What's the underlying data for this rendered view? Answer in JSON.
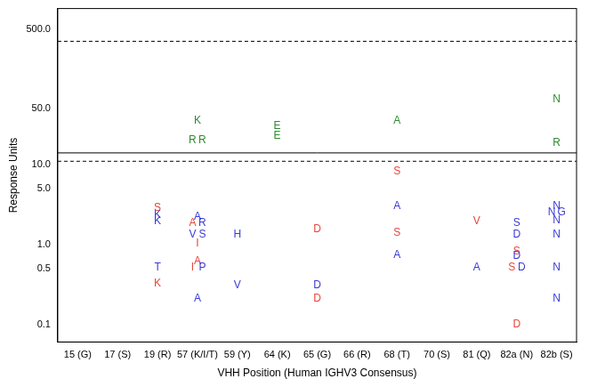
{
  "chart_data": {
    "type": "scatter",
    "x_label": "VHH Position (Human IGHV3 Consensus)",
    "y_label": "Response Units",
    "categories": [
      "15 (G)",
      "17 (S)",
      "19 (R)",
      "57 (K/I/T)",
      "59 (Y)",
      "64 (K)",
      "65 (G)",
      "66 (R)",
      "68 (T)",
      "70 (S)",
      "81 (Q)",
      "82a (N)",
      "82b (S)"
    ],
    "log": "y",
    "grid": false,
    "ylim": [
      0.06,
      900
    ],
    "yticks": [
      {
        "value": 0.1,
        "label": "0.1"
      },
      {
        "value": 0.5,
        "label": "0.5"
      },
      {
        "value": 1,
        "label": "1.0"
      },
      {
        "value": 5,
        "label": "5.0"
      },
      {
        "value": 10,
        "label": "10.0"
      },
      {
        "value": 50,
        "label": "50.0"
      },
      {
        "value": 500,
        "label": "500.0"
      }
    ],
    "reference_lines": [
      {
        "value": 350,
        "line_style": "dashed"
      },
      {
        "value": 14,
        "line_style": "solid"
      },
      {
        "value": 11,
        "line_style": "dashed"
      }
    ],
    "series": [
      {
        "color": "#2e8b2e",
        "points": [
          {
            "x": "57 (K/I/T)",
            "y": 35,
            "label": "K"
          },
          {
            "x": "57 (K/I/T)",
            "y": 20,
            "label": "R"
          },
          {
            "x": "57 (K/I/T)",
            "y": 20,
            "label": "R"
          },
          {
            "x": "64 (K)",
            "y": 30,
            "label": "E"
          },
          {
            "x": "64 (K)",
            "y": 23,
            "label": "E"
          },
          {
            "x": "68 (T)",
            "y": 35,
            "label": "A"
          },
          {
            "x": "82b (S)",
            "y": 66,
            "label": "N"
          },
          {
            "x": "82b (S)",
            "y": 18.5,
            "label": "R"
          }
        ]
      },
      {
        "color": "#e8453c",
        "points": [
          {
            "x": "19 (R)",
            "y": 2.9,
            "label": "S"
          },
          {
            "x": "19 (R)",
            "y": 0.32,
            "label": "K"
          },
          {
            "x": "57 (K/I/T)",
            "y": 1.85,
            "label": "A"
          },
          {
            "x": "57 (K/I/T)",
            "y": 1.02,
            "label": "I"
          },
          {
            "x": "57 (K/I/T)",
            "y": 0.61,
            "label": "A"
          },
          {
            "x": "57 (K/I/T)",
            "y": 0.52,
            "label": "I"
          },
          {
            "x": "65 (G)",
            "y": 1.55,
            "label": "D"
          },
          {
            "x": "65 (G)",
            "y": 0.21,
            "label": "D"
          },
          {
            "x": "68 (T)",
            "y": 8.2,
            "label": "S"
          },
          {
            "x": "68 (T)",
            "y": 1.41,
            "label": "S"
          },
          {
            "x": "81 (Q)",
            "y": 1.94,
            "label": "V"
          },
          {
            "x": "82a (N)",
            "y": 0.82,
            "label": "S"
          },
          {
            "x": "82a (N)",
            "y": 0.52,
            "label": "S"
          },
          {
            "x": "82a (N)",
            "y": 0.1,
            "label": "D"
          }
        ]
      },
      {
        "color": "#3a3ad6",
        "points": [
          {
            "x": "19 (R)",
            "y": 2.36,
            "label": "K"
          },
          {
            "x": "19 (R)",
            "y": 1.94,
            "label": "K"
          },
          {
            "x": "19 (R)",
            "y": 0.52,
            "label": "T"
          },
          {
            "x": "57 (K/I/T)",
            "y": 2.24,
            "label": "A"
          },
          {
            "x": "57 (K/I/T)",
            "y": 1.85,
            "label": "R"
          },
          {
            "x": "57 (K/I/T)",
            "y": 1.34,
            "label": "V"
          },
          {
            "x": "57 (K/I/T)",
            "y": 1.34,
            "label": "S"
          },
          {
            "x": "57 (K/I/T)",
            "y": 0.52,
            "label": "P"
          },
          {
            "x": "57 (K/I/T)",
            "y": 0.21,
            "label": "A"
          },
          {
            "x": "59 (Y)",
            "y": 1.34,
            "label": "H"
          },
          {
            "x": "59 (Y)",
            "y": 0.31,
            "label": "V"
          },
          {
            "x": "65 (G)",
            "y": 0.31,
            "label": "D"
          },
          {
            "x": "68 (T)",
            "y": 3.0,
            "label": "A"
          },
          {
            "x": "68 (T)",
            "y": 0.73,
            "label": "A"
          },
          {
            "x": "81 (Q)",
            "y": 0.52,
            "label": "A"
          },
          {
            "x": "82a (N)",
            "y": 1.85,
            "label": "S"
          },
          {
            "x": "82a (N)",
            "y": 1.34,
            "label": "D"
          },
          {
            "x": "82a (N)",
            "y": 0.72,
            "label": "D"
          },
          {
            "x": "82a (N)",
            "y": 0.52,
            "label": "D"
          },
          {
            "x": "82b (S)",
            "y": 3.0,
            "label": "N"
          },
          {
            "x": "82b (S)",
            "y": 2.5,
            "label": "N"
          },
          {
            "x": "82b (S)",
            "y": 2.5,
            "label": "G"
          },
          {
            "x": "82b (S)",
            "y": 2.0,
            "label": "N"
          },
          {
            "x": "82b (S)",
            "y": 1.34,
            "label": "N"
          },
          {
            "x": "82b (S)",
            "y": 0.52,
            "label": "N"
          },
          {
            "x": "82b (S)",
            "y": 0.21,
            "label": "N"
          }
        ]
      }
    ]
  }
}
